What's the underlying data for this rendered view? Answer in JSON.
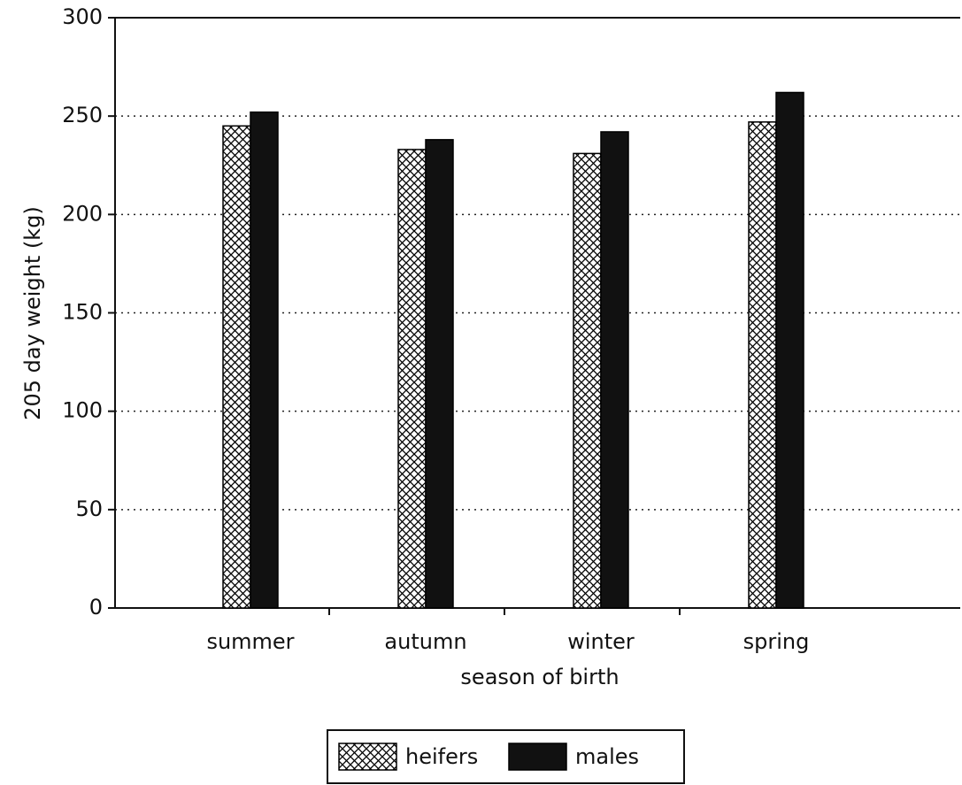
{
  "chart_data": {
    "type": "bar",
    "y_label": "205 day weight (kg)",
    "x_label": "season of birth",
    "categories": [
      "summer",
      "autumn",
      "winter",
      "spring"
    ],
    "series": [
      {
        "name": "heifers",
        "color": "#000000",
        "hatch": "cross",
        "values": [
          245,
          233,
          231,
          247
        ]
      },
      {
        "name": "males",
        "color": "#111111",
        "values": [
          252,
          238,
          242,
          262
        ]
      }
    ],
    "ylim": [
      0,
      300
    ],
    "yticks": [
      0,
      50,
      100,
      150,
      200,
      250,
      300
    ],
    "grid": true,
    "legend": "bottom"
  }
}
